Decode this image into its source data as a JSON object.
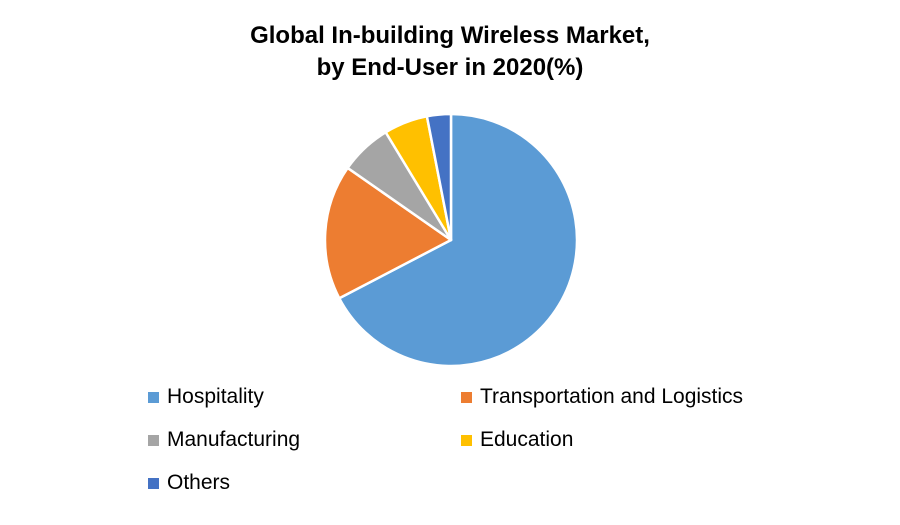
{
  "chart_data": {
    "type": "pie",
    "title_lines": [
      "Global In-building Wireless Market,",
      "by End-User in 2020(%)"
    ],
    "categories": [
      "Hospitality",
      "Transportation and Logistics",
      "Manufacturing",
      "Education",
      "Others"
    ],
    "values": [
      66,
      17,
      6.5,
      5.5,
      3
    ],
    "colors": [
      "#5B9BD5",
      "#ED7D31",
      "#A5A5A5",
      "#FFC000",
      "#4472C4"
    ],
    "start": "12 o'clock",
    "direction": "clockwise",
    "legend_position": "bottom"
  }
}
